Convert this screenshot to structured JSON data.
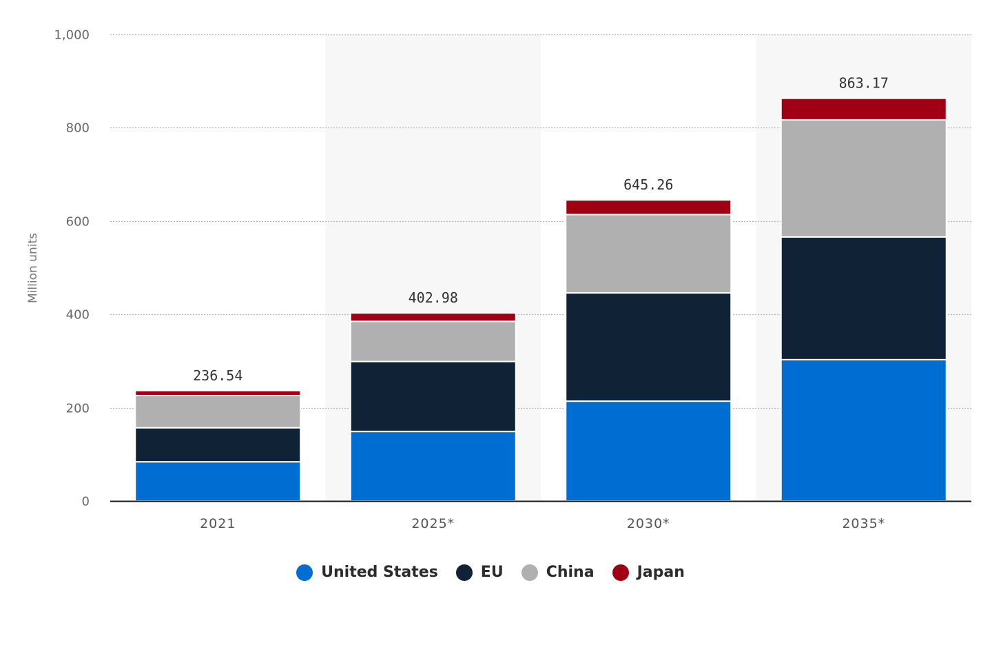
{
  "chart_data": {
    "type": "bar",
    "stacked": true,
    "title": "",
    "xlabel": "",
    "ylabel": "Million units",
    "ylim": [
      0,
      1000
    ],
    "yticks": [
      0,
      200,
      400,
      600,
      800,
      1000
    ],
    "ytick_labels": [
      "0",
      "200",
      "400",
      "600",
      "800",
      "1,000"
    ],
    "grid": true,
    "legend_position": "bottom",
    "categories": [
      "2021",
      "2025*",
      "2030*",
      "2035*"
    ],
    "series": [
      {
        "name": "United States",
        "color": "#006dd3",
        "values": [
          84,
          149,
          214,
          303
        ]
      },
      {
        "name": "EU",
        "color": "#0f2236",
        "values": [
          73,
          150,
          232,
          263
        ]
      },
      {
        "name": "China",
        "color": "#b0b0b0",
        "values": [
          69,
          86,
          168,
          251
        ]
      },
      {
        "name": "Japan",
        "color": "#a00014",
        "values": [
          10.54,
          17.98,
          31.26,
          46.17
        ]
      }
    ],
    "totals": [
      236.54,
      402.98,
      645.26,
      863.17
    ],
    "total_labels": [
      "236.54",
      "402.98",
      "645.26",
      "863.17"
    ]
  },
  "legend": {
    "items": [
      {
        "label": "United States",
        "color": "#006dd3"
      },
      {
        "label": "EU",
        "color": "#0f2236"
      },
      {
        "label": "China",
        "color": "#b0b0b0"
      },
      {
        "label": "Japan",
        "color": "#a00014"
      }
    ]
  }
}
